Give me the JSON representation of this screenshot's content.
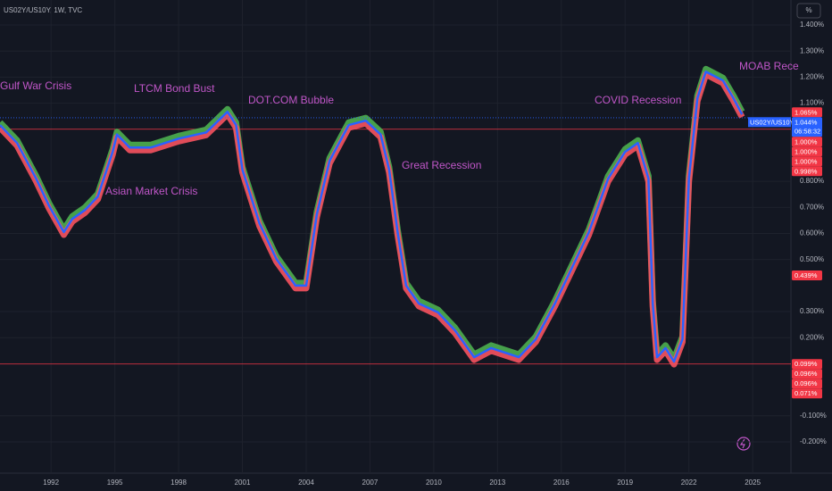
{
  "chart_data": {
    "type": "line",
    "header": "US02Y/US10Y, 1W, TVC",
    "unit": "%",
    "x": [
      1989.6,
      1990.4,
      1991.3,
      1991.9,
      1992.6,
      1993.0,
      1993.6,
      1994.2,
      1994.9,
      1995.1,
      1995.7,
      1996.7,
      1998.0,
      1999.3,
      2000.3,
      2000.7,
      2001.0,
      2001.8,
      2002.6,
      2003.5,
      2004.0,
      2004.5,
      2005.1,
      2006.0,
      2006.8,
      2007.5,
      2007.9,
      2008.3,
      2008.7,
      2009.3,
      2010.2,
      2011.0,
      2011.9,
      2012.7,
      2014.0,
      2014.8,
      2015.7,
      2016.5,
      2017.3,
      2018.2,
      2019.0,
      2019.6,
      2020.1,
      2020.3,
      2020.5,
      2020.9,
      2021.3,
      2021.7,
      2022.0,
      2022.4,
      2022.8,
      2023.2,
      2023.6,
      2024.1,
      2024.5
    ],
    "series": [
      {
        "color": "#2962ff",
        "values": [
          1.016,
          0.947,
          0.81,
          0.707,
          0.605,
          0.656,
          0.69,
          0.742,
          0.913,
          0.98,
          0.93,
          0.93,
          0.964,
          0.988,
          1.067,
          1.016,
          0.845,
          0.639,
          0.502,
          0.4,
          0.4,
          0.673,
          0.879,
          1.016,
          1.033,
          0.98,
          0.845,
          0.605,
          0.4,
          0.331,
          0.297,
          0.228,
          0.125,
          0.16,
          0.125,
          0.194,
          0.331,
          0.468,
          0.605,
          0.81,
          0.913,
          0.947,
          0.81,
          0.331,
          0.125,
          0.16,
          0.108,
          0.194,
          0.81,
          1.118,
          1.221,
          1.204,
          1.187,
          1.118,
          1.057
        ]
      }
    ],
    "xlim": [
      1989.6,
      2026.8
    ],
    "xticks": [
      1992,
      1995,
      1998,
      2001,
      2004,
      2007,
      2010,
      2013,
      2016,
      2019,
      2022,
      2025
    ],
    "ylim": [
      -0.32,
      1.496
    ],
    "yticks": [
      {
        "value": -0.2,
        "label": "-0.200%"
      },
      {
        "value": -0.1,
        "label": "-0.100%"
      },
      {
        "value": 0.2,
        "label": "0.200%"
      },
      {
        "value": 0.3,
        "label": "0.300%"
      },
      {
        "value": 0.5,
        "label": "0.500%"
      },
      {
        "value": 0.6,
        "label": "0.600%"
      },
      {
        "value": 0.7,
        "label": "0.700%"
      },
      {
        "value": 0.8,
        "label": "0.800%"
      },
      {
        "value": 1.1,
        "label": "1.100%"
      },
      {
        "value": 1.2,
        "label": "1.200%"
      },
      {
        "value": 1.3,
        "label": "1.300%"
      },
      {
        "value": 1.4,
        "label": "1.400%"
      }
    ],
    "grid": true,
    "hlines": [
      1.0,
      0.099
    ],
    "hline_color": "#f23645",
    "annotations": [
      "Gulf War Crisis",
      "LTCM Bond Bust",
      "DOT.COM Bubble",
      "Asian Market Crisis",
      "Great Recession",
      "COVID Recession",
      "MOAB Rece"
    ],
    "annotation_color": "#c056c8",
    "current": {
      "name": "US02Y/US10Y",
      "value": 1.044,
      "label": "1.044%",
      "countdown": "06:58:32",
      "color": "#2962ff"
    },
    "price_labels": [
      {
        "value": 1.065,
        "label": "1.065%"
      },
      {
        "value": 1.0,
        "label": "1.000%"
      },
      {
        "value": 1.0,
        "label": "1.000%"
      },
      {
        "value": 1.0,
        "label": "1.000%"
      },
      {
        "value": 0.998,
        "label": "0.998%"
      },
      {
        "value": 0.439,
        "label": "0.439%"
      },
      {
        "value": 0.099,
        "label": "0.099%"
      },
      {
        "value": 0.096,
        "label": "0.096%"
      },
      {
        "value": 0.096,
        "label": "0.096%"
      },
      {
        "value": 0.071,
        "label": "0.071%"
      }
    ],
    "price_label_color": "#f23645"
  }
}
